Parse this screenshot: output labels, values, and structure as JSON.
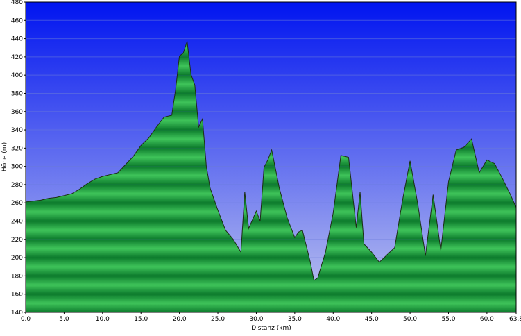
{
  "chart_data": {
    "type": "area",
    "title": "",
    "xlabel": "Distanz  (km)",
    "ylabel": "Höhe (m)",
    "xlim": [
      0,
      63.8
    ],
    "ylim": [
      140,
      480
    ],
    "x_ticks": [
      "0.0",
      "5.0",
      "10.0",
      "15.0",
      "20.0",
      "25.0",
      "30.0",
      "35.0",
      "40.0",
      "45.0",
      "50.0",
      "55.0",
      "60.0",
      "63.8"
    ],
    "y_ticks": [
      "140",
      "160",
      "180",
      "200",
      "220",
      "240",
      "260",
      "280",
      "300",
      "320",
      "340",
      "360",
      "380",
      "400",
      "420",
      "440",
      "460",
      "480"
    ],
    "grid": true,
    "colors": {
      "sky_top": "#0014f0",
      "sky_bottom": "#c2c8ef",
      "fill_dark": "#0c7a2c",
      "fill_light": "#3fc45a",
      "outline": "#1c2e14",
      "grid": "#6a7ad8",
      "frame": "#000000"
    },
    "series": [
      {
        "x": [
          0,
          1,
          2,
          3,
          4,
          5,
          6,
          7,
          8,
          9,
          10,
          11,
          12,
          13,
          14,
          15,
          16,
          17,
          18,
          19,
          19.5,
          20,
          20.5,
          21,
          21.5,
          22,
          22.5,
          23,
          23.5,
          24,
          25,
          26,
          27,
          28,
          28.5,
          29,
          30,
          30.5,
          31,
          31.5,
          32,
          33,
          34,
          35,
          35.5,
          36,
          37,
          37.5,
          38,
          39,
          40,
          41,
          42,
          43,
          43.5,
          44,
          45,
          46,
          47,
          48,
          49,
          50,
          51,
          52,
          53,
          54,
          55,
          56,
          57,
          58,
          59,
          60,
          61,
          62,
          63,
          63.8
        ],
        "y": [
          261,
          262,
          263,
          265,
          266,
          268,
          270,
          275,
          281,
          286,
          289,
          291,
          293,
          302,
          311,
          323,
          331,
          343,
          354,
          356,
          384,
          421,
          424,
          437,
          401,
          389,
          343,
          352,
          300,
          276,
          252,
          230,
          220,
          206,
          272,
          232,
          251,
          240,
          299,
          307,
          318,
          276,
          244,
          222,
          228,
          230,
          196,
          175,
          178,
          206,
          249,
          312,
          310,
          233,
          272,
          215,
          206,
          195,
          203,
          211,
          262,
          306,
          259,
          202,
          269,
          208,
          283,
          318,
          321,
          330,
          293,
          307,
          303,
          287,
          270,
          255
        ]
      }
    ]
  }
}
